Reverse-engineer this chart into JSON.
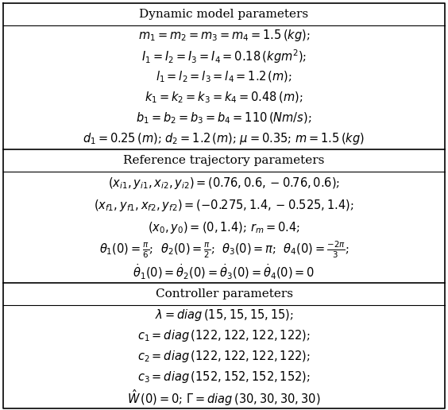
{
  "title1": "Dynamic model parameters",
  "title2": "Reference trajectory parameters",
  "title3": "Controller parameters",
  "section1_lines": [
    "$m_1 = m_2 = m_3 = m_4 = 1.5\\,(kg)$;",
    "$I_1 = I_2 = I_3 = I_4 = 0.18\\,(kgm^2)$;",
    "$l_1 = l_2 = l_3 = l_4 = 1.2\\,(m)$;",
    "$k_1 = k_2 = k_3 = k_4 = 0.48\\,(m)$;",
    "$b_1 = b_2 = b_3 = b_4 = 110\\,(Nm/s)$;",
    "$d_1 = 0.25\\,(m)$; $d_2 = 1.2\\,(m)$; $\\mu = 0.35$; $m = 1.5\\,(kg)$"
  ],
  "section2_lines": [
    "$(x_{i1}, y_{i1}, x_{i2}, y_{i2}) = (0.76, 0.6, -0.76, 0.6)$;",
    "$(x_{f1}, y_{f1}, x_{f2}, y_{f2}) = (-0.275, 1.4, -0.525, 1.4)$;",
    "$(x_0, y_0) = (0, 1.4)$; $r_m = 0.4$;",
    "$\\theta_1(0) = \\frac{\\pi}{6}$;  $\\theta_2(0) = \\frac{\\pi}{2}$;  $\\theta_3(0) = \\pi$;  $\\theta_4(0) = \\frac{-2\\pi}{3}$;",
    "$\\dot{\\theta}_1(0) = \\dot{\\theta}_2(0) = \\dot{\\theta}_3(0) = \\dot{\\theta}_4(0) = 0$"
  ],
  "section3_lines": [
    "$\\lambda = diag\\,(15, 15, 15, 15)$;",
    "$c_1 = diag\\,(122, 122, 122, 122)$;",
    "$c_2 = diag\\,(122, 122, 122, 122)$;",
    "$c_3 = diag\\,(152, 152, 152, 152)$;",
    "$\\hat{W}\\,(0) = 0$; $\\mathit{\\Gamma} = diag\\,(30, 30, 30, 30)$"
  ],
  "fontsize": 10.5,
  "title_fontsize": 11,
  "bg_color": "#ffffff",
  "border_color": "#000000",
  "fig_width": 5.64,
  "fig_height": 5.16,
  "dpi": 100
}
